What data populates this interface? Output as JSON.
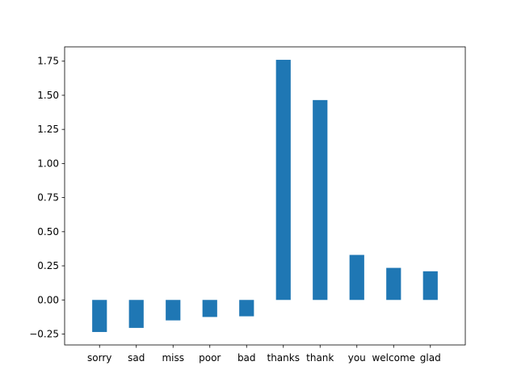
{
  "chart_data": {
    "type": "bar",
    "categories": [
      "sorry",
      "sad",
      "miss",
      "poor",
      "bad",
      "thanks",
      "thank",
      "you",
      "welcome",
      "glad"
    ],
    "values": [
      -0.235,
      -0.205,
      -0.15,
      -0.125,
      -0.12,
      1.76,
      1.465,
      0.33,
      0.235,
      0.21
    ],
    "title": "",
    "xlabel": "",
    "ylabel": "",
    "ylim": [
      -0.33,
      1.855
    ],
    "yticks": [
      -0.25,
      0.0,
      0.25,
      0.5,
      0.75,
      1.0,
      1.25,
      1.5,
      1.75
    ],
    "ytick_labels": [
      "−0.25",
      "0.00",
      "0.25",
      "0.50",
      "0.75",
      "1.00",
      "1.25",
      "1.50",
      "1.75"
    ],
    "grid": false,
    "bar_color": "#1f77b4"
  }
}
